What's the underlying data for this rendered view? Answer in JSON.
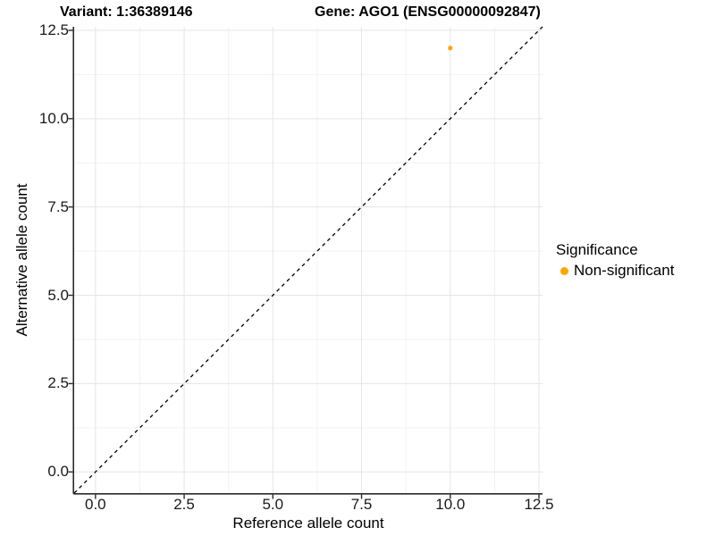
{
  "title": {
    "variant": "Variant: 1:36389146",
    "gene": "Gene: AGO1 (ENSG00000092847)"
  },
  "axes": {
    "x_title": "Reference allele count",
    "y_title": "Alternative allele count"
  },
  "legend": {
    "title": "Significance",
    "items": [
      {
        "label": "Non-significant",
        "color": "#FFA500"
      }
    ]
  },
  "colors": {
    "background": "#ffffff",
    "axis_line": "#2b2b2b",
    "major_grid": "#e5e5e5",
    "minor_grid": "#f2f2f2",
    "reference_line": "#000000",
    "point": "#FFA500",
    "tick_text": "#1a1a1a"
  },
  "chart_data": {
    "type": "scatter",
    "title": "Variant: 1:36389146        Gene: AGO1 (ENSG00000092847)",
    "xlabel": "Reference allele count",
    "ylabel": "Alternative allele count",
    "xlim": [
      -0.6,
      12.6
    ],
    "ylim": [
      -0.6,
      12.6
    ],
    "x_ticks": [
      0.0,
      2.5,
      5.0,
      7.5,
      10.0,
      12.5
    ],
    "y_ticks": [
      0.0,
      2.5,
      5.0,
      7.5,
      10.0,
      12.5
    ],
    "x_tick_labels": [
      "0.0",
      "2.5",
      "5.0",
      "7.5",
      "10.0",
      "12.5"
    ],
    "y_tick_labels": [
      "0.0",
      "2.5",
      "5.0",
      "7.5",
      "10.0",
      "12.5"
    ],
    "minor_ticks": [
      1.25,
      3.75,
      6.25,
      8.75,
      11.25
    ],
    "grid": true,
    "legend_position": "right",
    "series": [
      {
        "name": "Non-significant",
        "color": "#FFA500",
        "points": [
          {
            "x": 10,
            "y": 12
          }
        ],
        "point_radius": 2.6
      }
    ],
    "reference_line": {
      "type": "abline",
      "slope": 1,
      "intercept": 0,
      "style": "dashed",
      "color": "#000000"
    }
  }
}
